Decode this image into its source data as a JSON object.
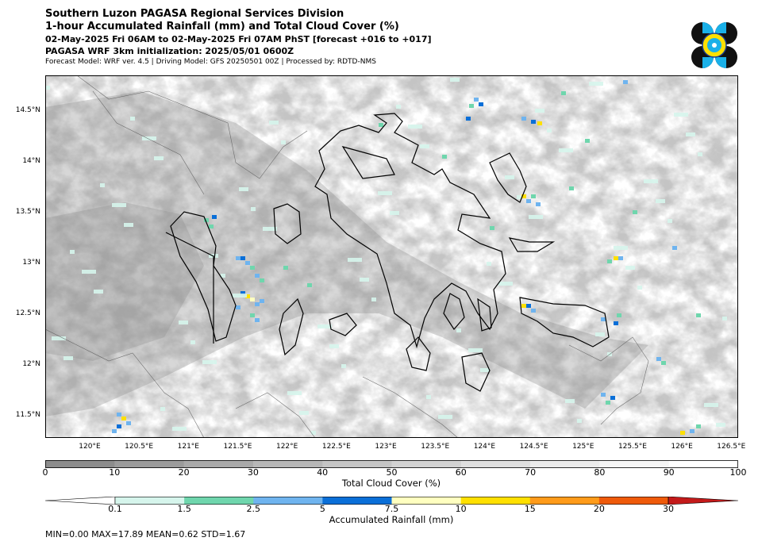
{
  "header": {
    "title": "Southern Luzon PAGASA Regional Services Division",
    "subtitle": "1-hour Accumulated Rainfall (mm) and Total Cloud Cover (%)",
    "valid_time": "02-May-2025 Fri 06AM to 02-May-2025 Fri 07AM PhST [forecast +016 to +017]",
    "init": "PAGASA WRF 3km initialization: 2025/05/01 0600Z",
    "model_info": "Forecast Model: WRF ver. 4.5 | Driving Model: GFS 20250501 00Z | Processed by: RDTD-NMS"
  },
  "map": {
    "lat_labels": [
      "14.5°N",
      "14°N",
      "13.5°N",
      "13°N",
      "12.5°N",
      "12°N",
      "11.5°N"
    ],
    "lon_labels": [
      "120°E",
      "120.5°E",
      "121°E",
      "121.5°E",
      "122°E",
      "122.5°E",
      "123°E",
      "123.5°E",
      "124°E",
      "124.5°E",
      "125°E",
      "125.5°E",
      "126°E",
      "126.5°E"
    ],
    "lat_values": [
      14.5,
      14,
      13.5,
      13,
      12.5,
      12,
      11.5
    ],
    "lon_values": [
      120,
      120.5,
      121,
      121.5,
      122,
      122.5,
      123,
      123.5,
      124,
      124.5,
      125,
      125.5,
      126,
      126.5
    ],
    "extent": {
      "lon_min": 119.55,
      "lon_max": 126.57,
      "lat_min": 11.28,
      "lat_max": 14.85
    }
  },
  "cloud_colorbar": {
    "title": "Total Cloud Cover (%)",
    "ticks": [
      "0",
      "10",
      "20",
      "30",
      "40",
      "50",
      "60",
      "70",
      "80",
      "90",
      "100"
    ],
    "colors": [
      "#8c8c8c",
      "#9b9b9b",
      "#a9a9a9",
      "#b7b7b7",
      "#c5c5c5",
      "#d2d2d2",
      "#dfdfdf",
      "#ebebeb",
      "#f5f5f5",
      "#ffffff"
    ]
  },
  "rain_colorbar": {
    "title": "Accumulated Rainfall (mm)",
    "ticks": [
      "0.1",
      "1.5",
      "2.5",
      "5",
      "7.5",
      "10",
      "15",
      "20",
      "30"
    ],
    "colors": [
      "#ffffff",
      "#d6f5ec",
      "#6fd6ad",
      "#6fb4ef",
      "#0a6fd8",
      "#ffffc0",
      "#ffe000",
      "#ff9b1a",
      "#ef5a0a",
      "#c41a1a"
    ]
  },
  "stats": "MIN=0.00   MAX=17.89   MEAN=0.62   STD=1.67"
}
